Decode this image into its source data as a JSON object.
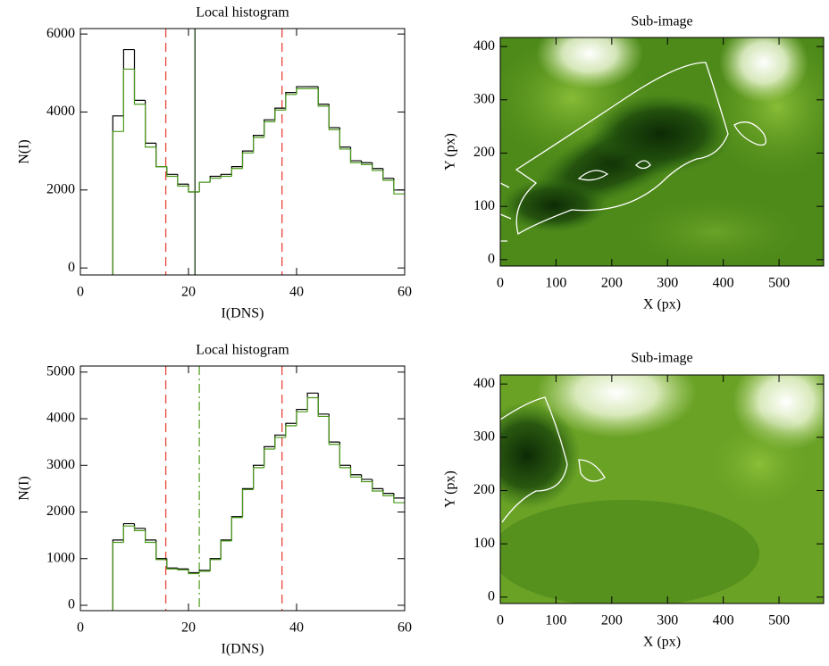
{
  "chart_data": [
    {
      "type": "histogram",
      "title": "Local histogram",
      "xlabel": "I(DNS)",
      "ylabel": "N(I)",
      "xlim": [
        0,
        60
      ],
      "xticks": [
        0,
        20,
        40,
        60
      ],
      "ylim": [
        -180,
        6140
      ],
      "yticks": [
        0,
        2000,
        4000,
        6000
      ],
      "bins": [
        6,
        8,
        10,
        12,
        14,
        16,
        18,
        20,
        22,
        24,
        26,
        28,
        30,
        32,
        34,
        36,
        38,
        40,
        42,
        44,
        46,
        48,
        50,
        52,
        54,
        56,
        58,
        60
      ],
      "series": [
        {
          "color": "#000000",
          "values": [
            3900,
            5600,
            4300,
            3200,
            2600,
            2400,
            2150,
            1950,
            2200,
            2350,
            2400,
            2600,
            3000,
            3400,
            3800,
            4100,
            4500,
            4650,
            4650,
            4200,
            3600,
            3100,
            2750,
            2700,
            2550,
            2300,
            2000
          ]
        },
        {
          "color": "#4a9a1a",
          "values": [
            3500,
            5100,
            4200,
            3100,
            2600,
            2350,
            2100,
            1950,
            2200,
            2300,
            2350,
            2550,
            2950,
            3350,
            3750,
            4050,
            4450,
            4600,
            4600,
            4150,
            3550,
            3050,
            2700,
            2650,
            2500,
            2250,
            1900
          ]
        }
      ],
      "vlines": [
        {
          "value": 15.8,
          "color": "#e8453c",
          "style": "dashed"
        },
        {
          "value": 21.2,
          "color": "#1a3a10",
          "style": "solid"
        },
        {
          "value": 37.3,
          "color": "#e8453c",
          "style": "dashed"
        }
      ]
    },
    {
      "type": "image",
      "title": "Sub-image",
      "xlabel": "X (px)",
      "ylabel": "Y (px)",
      "xlim": [
        0,
        580
      ],
      "xticks": [
        0,
        100,
        200,
        300,
        400,
        500
      ],
      "ylim": [
        -12,
        417
      ],
      "yticks": [
        0,
        100,
        200,
        300,
        400
      ]
    },
    {
      "type": "histogram",
      "title": "Local histogram",
      "xlabel": "I(DNS)",
      "ylabel": "N(I)",
      "xlim": [
        0,
        60
      ],
      "xticks": [
        0,
        20,
        40,
        60
      ],
      "ylim": [
        -115,
        5130
      ],
      "yticks": [
        0,
        1000,
        2000,
        3000,
        4000,
        5000
      ],
      "bins": [
        6,
        8,
        10,
        12,
        14,
        16,
        18,
        20,
        22,
        24,
        26,
        28,
        30,
        32,
        34,
        36,
        38,
        40,
        42,
        44,
        46,
        48,
        50,
        52,
        54,
        56,
        58,
        60
      ],
      "series": [
        {
          "color": "#000000",
          "values": [
            1400,
            1750,
            1650,
            1400,
            1000,
            800,
            780,
            700,
            750,
            1000,
            1400,
            1900,
            2500,
            3000,
            3400,
            3650,
            3900,
            4200,
            4550,
            4100,
            3500,
            3000,
            2800,
            2700,
            2500,
            2400,
            2300
          ]
        },
        {
          "color": "#4a9a1a",
          "values": [
            1350,
            1700,
            1600,
            1350,
            980,
            780,
            760,
            680,
            730,
            980,
            1380,
            1880,
            2480,
            2950,
            3350,
            3600,
            3850,
            4150,
            4450,
            4050,
            3450,
            2950,
            2750,
            2650,
            2450,
            2350,
            2200
          ]
        }
      ],
      "vlines": [
        {
          "value": 15.8,
          "color": "#e8453c",
          "style": "dashed"
        },
        {
          "value": 22,
          "color": "#5aa02a",
          "style": "dashdot"
        },
        {
          "value": 37.3,
          "color": "#e8453c",
          "style": "dashed"
        }
      ]
    },
    {
      "type": "image",
      "title": "Sub-image",
      "xlabel": "X (px)",
      "ylabel": "Y (px)",
      "xlim": [
        0,
        580
      ],
      "xticks": [
        0,
        100,
        200,
        300,
        400,
        500
      ],
      "ylim": [
        -12,
        417
      ],
      "yticks": [
        0,
        100,
        200,
        300,
        400
      ]
    }
  ]
}
